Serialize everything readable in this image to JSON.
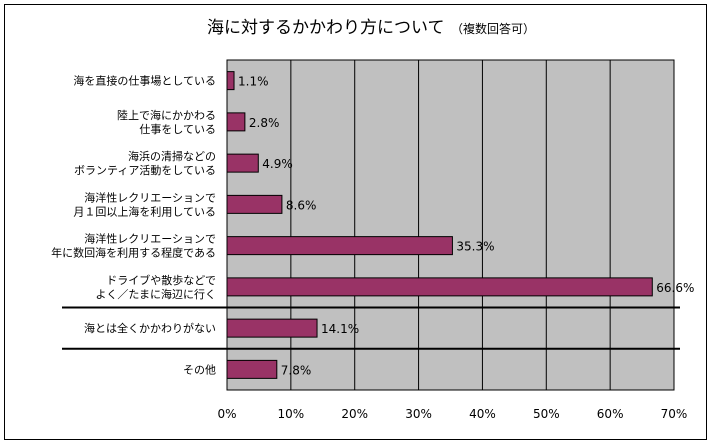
{
  "chart_data": {
    "type": "bar",
    "orientation": "horizontal",
    "title": "海に対するかかわり方について",
    "subtitle": "（複数回答可）",
    "categories": [
      [
        "海を直接の仕事場としている"
      ],
      [
        "陸上で海にかかわる",
        "仕事をしている"
      ],
      [
        "海浜の清掃などの",
        "ボランティア活動をしている"
      ],
      [
        "海洋性レクリエーションで",
        "月１回以上海を利用している"
      ],
      [
        "海洋性レクリエーションで",
        "年に数回海を利用する程度である"
      ],
      [
        "ドライブや散歩などで",
        "よく／たまに海辺に行く"
      ],
      [
        "海とは全くかかわりがない"
      ],
      [
        "その他"
      ]
    ],
    "values": [
      1.1,
      2.8,
      4.9,
      8.6,
      35.3,
      66.6,
      14.1,
      7.8
    ],
    "value_labels": [
      "1.1%",
      "2.8%",
      "4.9%",
      "8.6%",
      "35.3%",
      "66.6%",
      "14.1%",
      "7.8%"
    ],
    "xlim": [
      0,
      70
    ],
    "xticks": [
      "0%",
      "10%",
      "20%",
      "30%",
      "40%",
      "50%",
      "60%",
      "70%"
    ],
    "grid": true,
    "colors": {
      "bar": "#993366",
      "plot_bg": "#c0c0c0",
      "grid": "#000000"
    }
  }
}
